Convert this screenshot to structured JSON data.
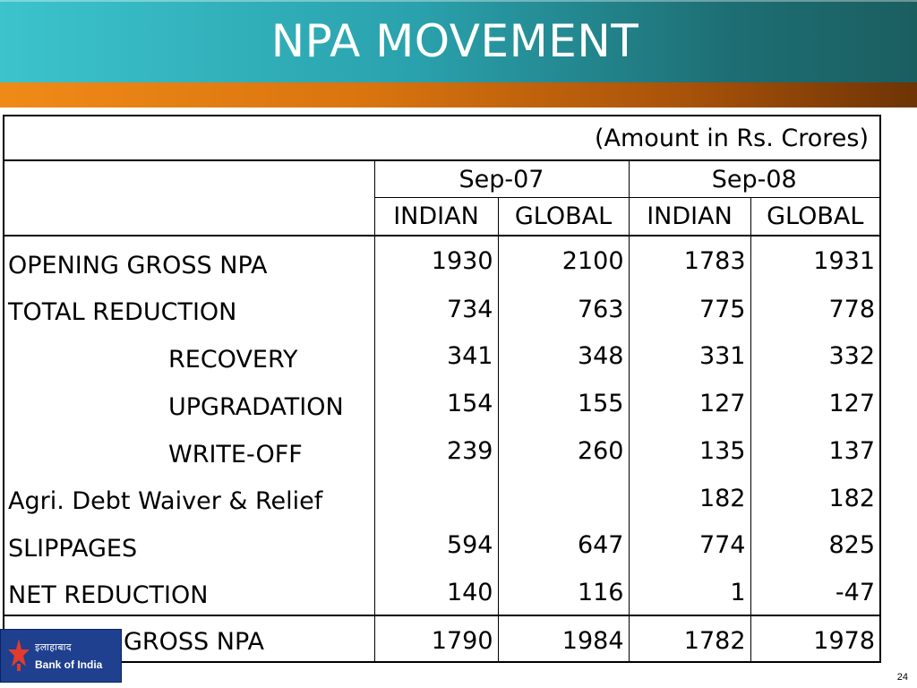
{
  "slide": {
    "title": "NPA MOVEMENT",
    "page_number": "24"
  },
  "logo": {
    "hindi_text": "इलाहाबाद",
    "english_text": "Bank of India"
  },
  "table": {
    "amount_note": "(Amount in Rs. Crores)",
    "periods": [
      "Sep-07",
      "Sep-08"
    ],
    "sub_headers": [
      "INDIAN",
      "GLOBAL",
      "INDIAN",
      "GLOBAL"
    ],
    "rows": [
      {
        "label": "OPENING GROSS NPA",
        "values": [
          "1930",
          "2100",
          "1783",
          "1931"
        ]
      },
      {
        "label": "TOTAL REDUCTION",
        "values": [
          "734",
          "763",
          "775",
          "778"
        ]
      },
      {
        "label": "RECOVERY",
        "values": [
          "341",
          "348",
          "331",
          "332"
        ]
      },
      {
        "label": "UPGRADATION",
        "values": [
          "154",
          "155",
          "127",
          "127"
        ]
      },
      {
        "label": "WRITE-OFF",
        "values": [
          "239",
          "260",
          "135",
          "137"
        ]
      },
      {
        "label": "Agri. Debt Waiver & Relief",
        "values": [
          "",
          "",
          "182",
          "182"
        ]
      },
      {
        "label": "SLIPPAGES",
        "values": [
          "594",
          "647",
          "774",
          "825"
        ]
      },
      {
        "label": "NET REDUCTION",
        "values": [
          "140",
          "116",
          "1",
          "-47"
        ]
      },
      {
        "label": "CLOSING GROSS NPA",
        "values": [
          "1790",
          "1984",
          "1782",
          "1978"
        ]
      }
    ]
  }
}
